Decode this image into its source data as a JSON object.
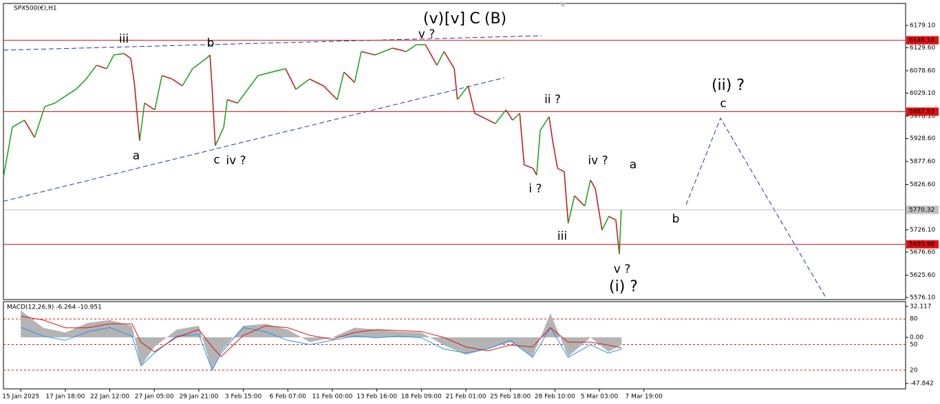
{
  "chart_data": {
    "type": "line",
    "title": "SPX500(€),H1",
    "xlim": [
      -0.39,
      19.88
    ],
    "ylim": [
      5571.5,
      6227.8
    ],
    "xticks": [
      {
        "value": 0,
        "label": "15 Jan 2025"
      },
      {
        "value": 1,
        "label": "17 Jan 18:00"
      },
      {
        "value": 2,
        "label": "22 Jan 12:00"
      },
      {
        "value": 3,
        "label": "27 Jan 05:00"
      },
      {
        "value": 4,
        "label": "29 Jan 21:00"
      },
      {
        "value": 5,
        "label": "3 Feb 15:00"
      },
      {
        "value": 6,
        "label": "6 Feb 07:00"
      },
      {
        "value": 7,
        "label": "11 Feb 00:00"
      },
      {
        "value": 8,
        "label": "13 Feb 16:00"
      },
      {
        "value": 9,
        "label": "18 Feb 09:00"
      },
      {
        "value": 10,
        "label": "21 Feb 01:00"
      },
      {
        "value": 11,
        "label": "25 Feb 18:00"
      },
      {
        "value": 12,
        "label": "28 Feb 10:00"
      },
      {
        "value": 13,
        "label": "5 Mar 03:00"
      },
      {
        "value": 14,
        "label": "7 Mar 19:00"
      }
    ],
    "yticks": [
      {
        "value": 6179.1,
        "label": "6179.10"
      },
      {
        "value": 6129.6,
        "label": "6129.60"
      },
      {
        "value": 6078.6,
        "label": "6078.60"
      },
      {
        "value": 6029.1,
        "label": "6029.10"
      },
      {
        "value": 5978.1,
        "label": "5978.10"
      },
      {
        "value": 5928.6,
        "label": "5928.60"
      },
      {
        "value": 5877.6,
        "label": "5877.60"
      },
      {
        "value": 5826.6,
        "label": "5826.60"
      },
      {
        "value": 5726.1,
        "label": "5726.10"
      },
      {
        "value": 5676.6,
        "label": "5676.60"
      },
      {
        "value": 5625.6,
        "label": "5625.60"
      },
      {
        "value": 5576.1,
        "label": "5576.10"
      }
    ],
    "up_color": "#22a322",
    "down_color": "#c0201a",
    "x": [
      -0.39,
      -0.19,
      0.08,
      0.31,
      0.54,
      0.77,
      1.0,
      1.24,
      1.47,
      1.7,
      1.93,
      2.09,
      2.32,
      2.47,
      2.55,
      2.67,
      2.78,
      3.01,
      3.17,
      3.4,
      3.63,
      3.86,
      4.17,
      4.25,
      4.3,
      4.37,
      4.56,
      4.64,
      4.87,
      5.1,
      5.33,
      5.64,
      5.95,
      6.18,
      6.49,
      6.8,
      7.11,
      7.26,
      7.5,
      7.65,
      7.96,
      8.35,
      8.66,
      8.89,
      9.09,
      9.35,
      9.51,
      9.74,
      9.81,
      10.05,
      10.2,
      10.51,
      10.66,
      10.9,
      11.05,
      11.21,
      11.31,
      11.51,
      11.59,
      11.67,
      11.87,
      11.95,
      12.06,
      12.21,
      12.3,
      12.44,
      12.67,
      12.8,
      12.91,
      13.06,
      13.21,
      13.37,
      13.45,
      13.49
    ],
    "values": [
      5842.6,
      5953.7,
      5969.0,
      5930.9,
      5999.4,
      6007.0,
      6022.3,
      6037.5,
      6060.3,
      6090.8,
      6083.2,
      6113.6,
      6116.7,
      6106.0,
      6052.7,
      5923.3,
      6007.0,
      5991.8,
      6067.9,
      6060.3,
      6045.1,
      6083.2,
      6106.0,
      6113.6,
      6037.5,
      5912.6,
      5953.7,
      6014.6,
      6007.0,
      6037.5,
      6067.9,
      6075.6,
      6083.2,
      6037.5,
      6060.3,
      6045.1,
      6014.6,
      6075.6,
      6052.7,
      6121.2,
      6113.6,
      6128.9,
      6121.2,
      6136.5,
      6136.5,
      6090.8,
      6121.2,
      6083.2,
      6014.6,
      6045.1,
      5984.2,
      5969.0,
      5961.4,
      5991.8,
      5969.0,
      5984.2,
      5870.0,
      5862.4,
      5847.1,
      5946.1,
      5976.6,
      5923.3,
      5862.4,
      5854.8,
      5740.6,
      5801.5,
      5778.6,
      5836.5,
      5816.7,
      5725.3,
      5755.8,
      5748.2,
      5672.0,
      5770.3
    ],
    "levels": [
      {
        "value": 6146.14,
        "color": "#e01010"
      },
      {
        "value": 5987.93,
        "color": "#e01010"
      },
      {
        "value": 5770.32,
        "color": "#c0c0c0"
      },
      {
        "value": 5693.98,
        "color": "#e01010"
      }
    ],
    "annotations": [
      {
        "text": "(v)",
        "color": "#1a2fbf"
      },
      {
        "text": "[v]",
        "color": "#1c8c1c"
      },
      {
        "text": "C",
        "color": "#1a2fbf"
      },
      {
        "text": "(B)",
        "color": "#e01010"
      },
      {
        "text": "v ?",
        "color": "#e020e0"
      },
      {
        "text": "iii",
        "color": "#e020e0"
      },
      {
        "text": "b",
        "color": "#000000"
      },
      {
        "text": "a",
        "color": "#000000"
      },
      {
        "text": "c",
        "color": "#000000"
      },
      {
        "text": "iv ?",
        "color": "#e020e0"
      },
      {
        "text": "ii ?",
        "color": "#e020e0"
      },
      {
        "text": "i ?",
        "color": "#e020e0"
      },
      {
        "text": "iv ?",
        "color": "#e020e0"
      },
      {
        "text": "iii",
        "color": "#e020e0"
      },
      {
        "text": "v ?",
        "color": "#e020e0"
      },
      {
        "text": "(i) ?",
        "color": "#1a2fbf"
      },
      {
        "text": "a",
        "color": "#e020e0"
      },
      {
        "text": "b",
        "color": "#e020e0"
      },
      {
        "text": "c",
        "color": "#e020e0"
      },
      {
        "text": "(ii) ?",
        "color": "#1a2fbf"
      }
    ],
    "macd": {
      "title": "MACD(12,26,9) -6.264 -10.951",
      "ylim": [
        -53.55,
        37.1
      ],
      "yticks": [
        {
          "value": 32.117,
          "label": "32.117"
        },
        {
          "value": 0,
          "label": "0.00"
        },
        {
          "value": -47.842,
          "label": "-47.842"
        }
      ],
      "y2lim": [
        -1.9,
        100.3
      ],
      "y2ticks": [
        80,
        50,
        20
      ],
      "x": [
        0,
        0.5,
        1,
        1.5,
        2,
        2.5,
        2.7,
        3,
        3.5,
        4,
        4.3,
        4.5,
        5,
        5.5,
        6,
        6.5,
        7,
        7.5,
        8,
        8.5,
        9,
        9.5,
        10,
        10.5,
        11,
        11.5,
        11.9,
        12.3,
        12.8,
        13.2,
        13.5
      ],
      "histogram": [
        28,
        10,
        5,
        15,
        18,
        12,
        -30,
        -10,
        8,
        12,
        -35,
        -15,
        12,
        14,
        8,
        -5,
        0,
        10,
        8,
        6,
        5,
        -8,
        -18,
        -12,
        -5,
        -20,
        25,
        -20,
        0,
        -15,
        -8
      ],
      "histogram_color": "#b4b4b4",
      "signal": [
        22,
        18,
        10,
        10,
        14,
        14,
        -5,
        -15,
        0,
        8,
        -10,
        -20,
        2,
        12,
        10,
        2,
        -2,
        5,
        8,
        7,
        6,
        0,
        -10,
        -14,
        -8,
        -10,
        10,
        -5,
        -5,
        -8,
        -11
      ],
      "signal_color": "#e01010",
      "oscillator": [
        70,
        60,
        55,
        65,
        70,
        60,
        25,
        40,
        60,
        62,
        20,
        40,
        70,
        65,
        55,
        50,
        55,
        60,
        58,
        60,
        58,
        45,
        40,
        45,
        55,
        35,
        70,
        35,
        50,
        40,
        45
      ],
      "oscillator_color": "#1e90ff"
    }
  }
}
